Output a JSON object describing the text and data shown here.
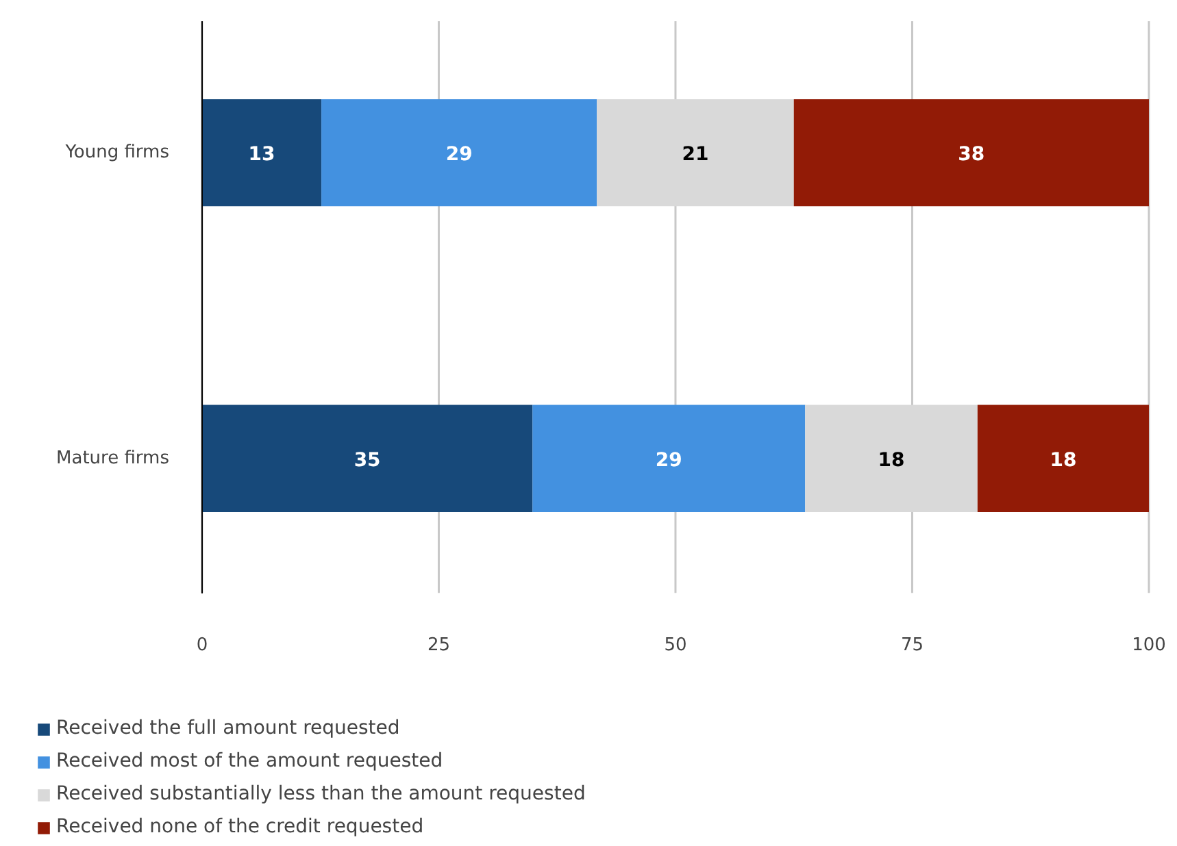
{
  "chart_data": {
    "type": "bar",
    "orientation": "horizontal",
    "stacked": true,
    "categories": [
      "Young firms",
      "Mature firms"
    ],
    "series": [
      {
        "name": "Received the full amount requested",
        "color": "#17497a",
        "values": [
          12.6,
          34.9
        ],
        "value_labels": [
          "13",
          "35"
        ]
      },
      {
        "name": "Received most of the amount requested",
        "color": "#4391e0",
        "values": [
          29.1,
          28.8
        ],
        "value_labels": [
          "29",
          "29"
        ]
      },
      {
        "name": "Received substantially less than the amount requested",
        "color": "#d9d9d9",
        "values": [
          20.8,
          18.2
        ],
        "value_labels": [
          "21",
          "18"
        ]
      },
      {
        "name": "Received none of the credit requested",
        "color": "#921b06",
        "values": [
          37.5,
          18.1
        ],
        "value_labels": [
          "38",
          "18"
        ]
      }
    ],
    "xlim": [
      0,
      100
    ],
    "xticks": [
      0,
      25,
      50,
      75,
      100
    ],
    "grid": "x",
    "legend": "bottom"
  }
}
